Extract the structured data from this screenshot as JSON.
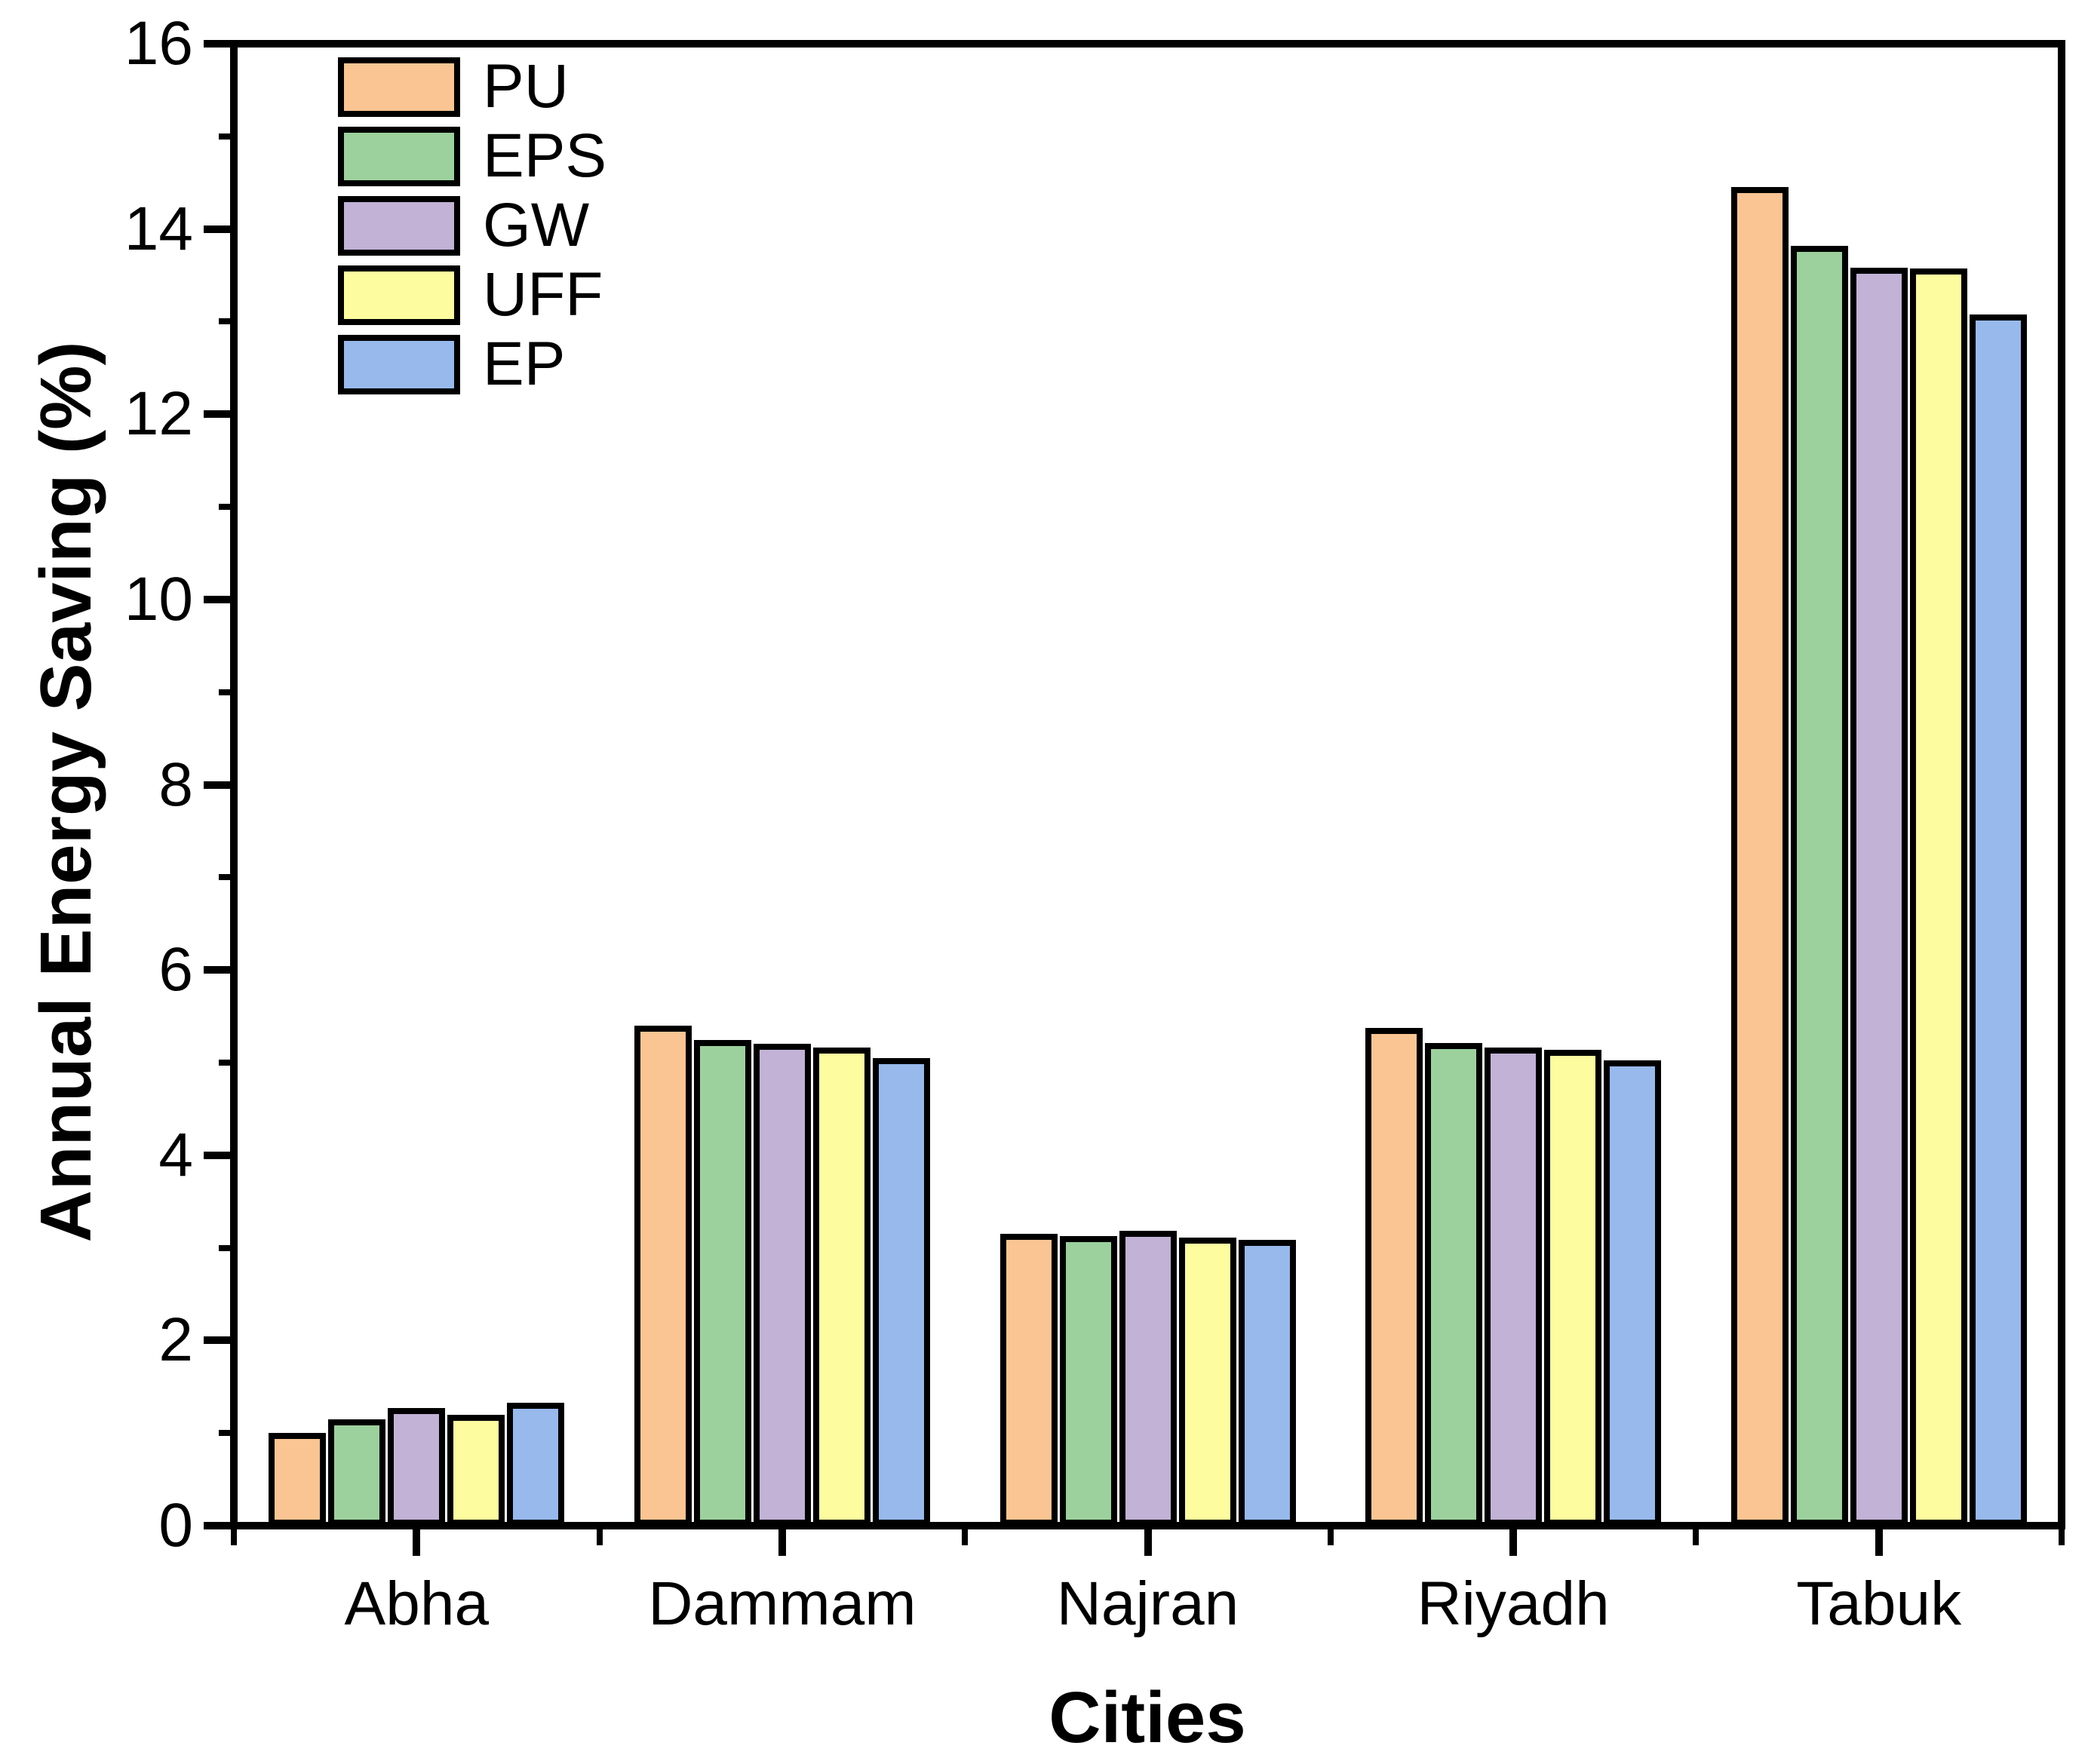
{
  "page": {
    "background": "#ffffff",
    "axis_color": "#000000"
  },
  "chart_data": {
    "type": "bar",
    "title": "",
    "xlabel": "Cities",
    "ylabel": "Annual Energy Saving (%)",
    "categories": [
      "Abha",
      "Dammam",
      "Najran",
      "Riyadh",
      "Tabuk"
    ],
    "series": [
      {
        "name": "PU",
        "color": "#FAC592",
        "values": [
          1.0,
          5.4,
          3.15,
          5.37,
          14.45
        ]
      },
      {
        "name": "EPS",
        "color": "#9CD19D",
        "values": [
          1.15,
          5.24,
          3.13,
          5.21,
          13.82
        ]
      },
      {
        "name": "GW",
        "color": "#C1B2D6",
        "values": [
          1.27,
          5.2,
          3.18,
          5.16,
          13.58
        ]
      },
      {
        "name": "UFF",
        "color": "#FDFD9F",
        "values": [
          1.2,
          5.16,
          3.11,
          5.14,
          13.57
        ]
      },
      {
        "name": "EP",
        "color": "#97B9EC",
        "values": [
          1.33,
          5.05,
          3.09,
          5.02,
          13.08
        ]
      }
    ],
    "ylim": [
      0,
      16
    ],
    "yticks": [
      0,
      2,
      4,
      6,
      8,
      10,
      12,
      14,
      16
    ],
    "y_minor_ticks": [
      1,
      3,
      5,
      7,
      9,
      11,
      13,
      15
    ],
    "grid": false,
    "legend_position": "top-left",
    "bar_border_color": "#000000"
  }
}
